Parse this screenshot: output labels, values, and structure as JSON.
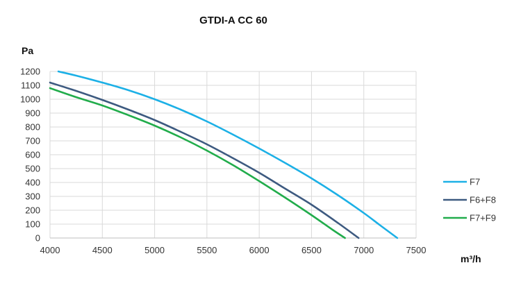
{
  "chart_data": {
    "type": "line",
    "title": "GTDI-A CC 60",
    "ylabel": "Pa",
    "xlabel": "m³/h",
    "xlim": [
      4000,
      7500
    ],
    "ylim": [
      0,
      1200
    ],
    "x_ticks": [
      4000,
      4500,
      5000,
      5500,
      6000,
      6500,
      7000,
      7500
    ],
    "y_ticks": [
      0,
      100,
      200,
      300,
      400,
      500,
      600,
      700,
      800,
      900,
      1000,
      1100,
      1200
    ],
    "grid": true,
    "legend_position": "right",
    "series": [
      {
        "name": "F7",
        "color": "#1CB0E6",
        "x": [
          4080,
          4250,
          4500,
          4750,
          5000,
          5250,
          5500,
          5750,
          6000,
          6250,
          6500,
          6750,
          7000,
          7150,
          7320
        ],
        "y": [
          1200,
          1170,
          1120,
          1065,
          1000,
          925,
          840,
          745,
          645,
          540,
          430,
          310,
          180,
          95,
          0
        ]
      },
      {
        "name": "F6+F8",
        "color": "#3D5A80",
        "x": [
          4000,
          4250,
          4500,
          4750,
          5000,
          5250,
          5500,
          5750,
          6000,
          6250,
          6500,
          6750,
          6950
        ],
        "y": [
          1120,
          1060,
          995,
          925,
          850,
          765,
          675,
          575,
          470,
          355,
          240,
          110,
          0
        ]
      },
      {
        "name": "F7+F9",
        "color": "#21AC4B",
        "x": [
          4000,
          4250,
          4500,
          4750,
          5000,
          5250,
          5500,
          5750,
          6000,
          6250,
          6500,
          6700,
          6820
        ],
        "y": [
          1080,
          1015,
          955,
          885,
          810,
          725,
          630,
          525,
          410,
          290,
          165,
          60,
          0
        ]
      }
    ]
  }
}
